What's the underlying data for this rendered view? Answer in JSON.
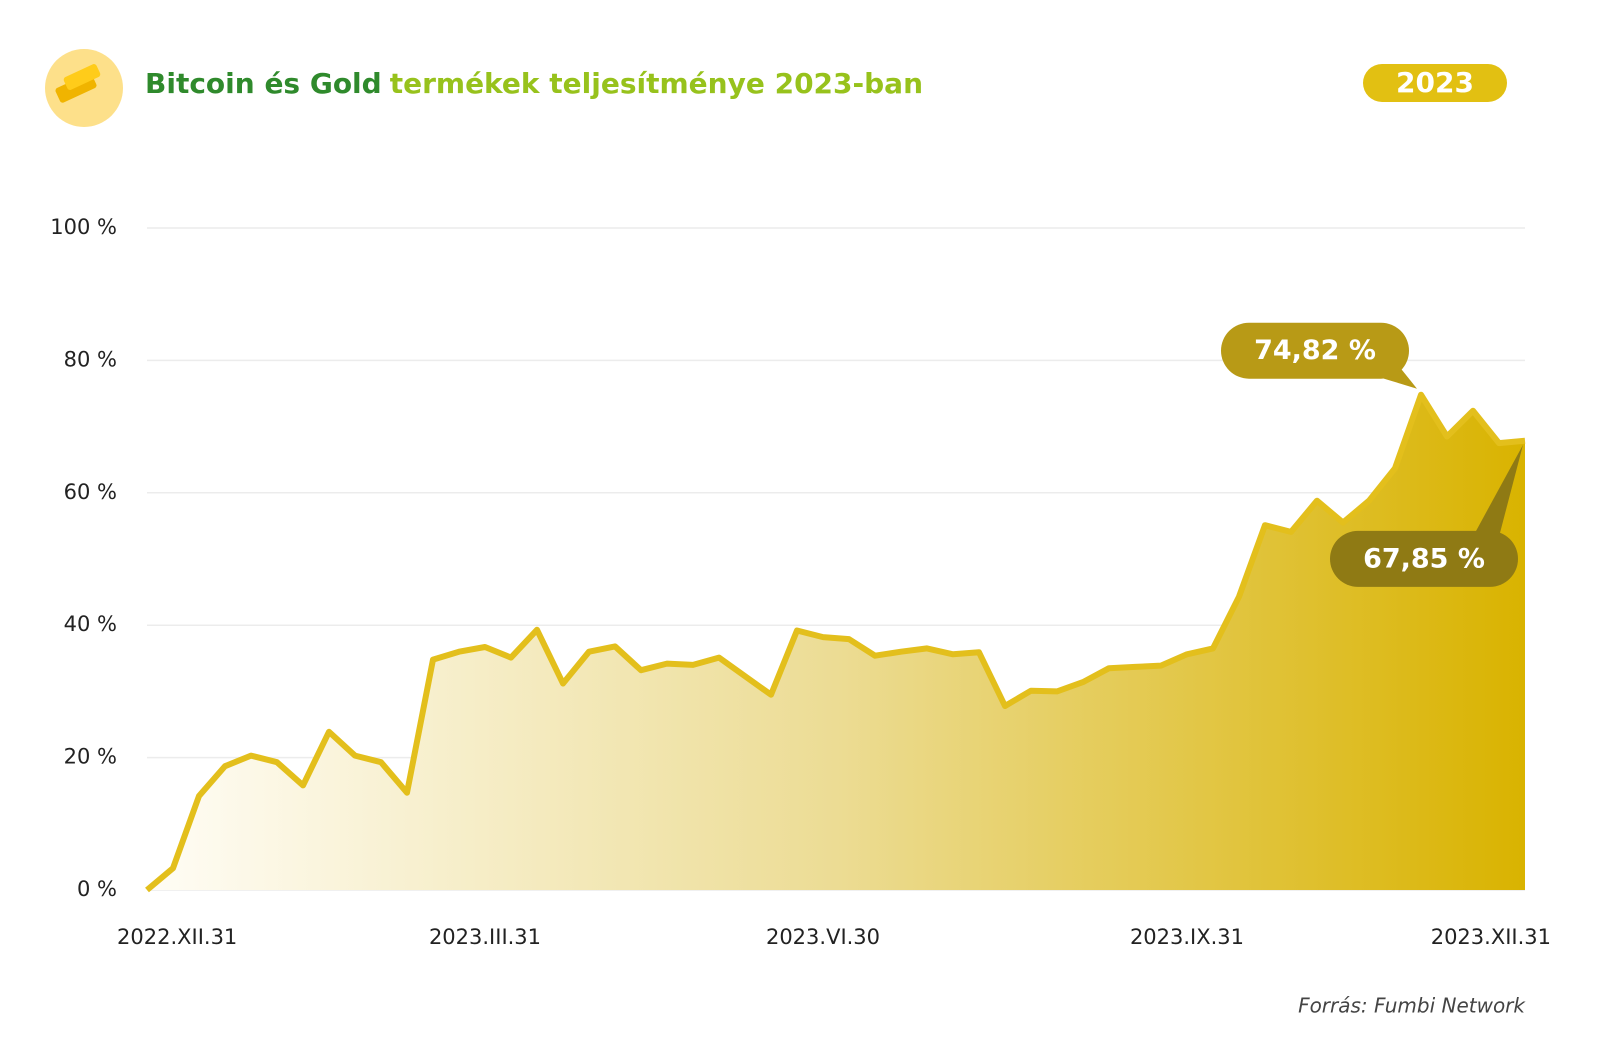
{
  "header": {
    "title_strong": "Bitcoin és Gold",
    "title": "termékek teljesítménye 2023-ban",
    "badge": "2023"
  },
  "chart_data": {
    "type": "area",
    "categories": [
      "2022.XII.31",
      null,
      null,
      null,
      null,
      null,
      null,
      null,
      null,
      null,
      null,
      null,
      null,
      "2023.III.31",
      null,
      null,
      null,
      null,
      null,
      null,
      null,
      null,
      null,
      null,
      null,
      null,
      "2023.VI.30",
      null,
      null,
      null,
      null,
      null,
      null,
      null,
      null,
      null,
      null,
      null,
      null,
      null,
      "2023.IX.31",
      null,
      null,
      null,
      null,
      null,
      null,
      null,
      null,
      null,
      null,
      null,
      null,
      "2023.XII.31"
    ],
    "series": [
      {
        "color": "#e3bf1c",
        "values": [
          0,
          3.3,
          14.2,
          18.7,
          20.3,
          19.3,
          15.8,
          23.9,
          20.3,
          19.3,
          14.7,
          34.8,
          36.0,
          36.7,
          35.1,
          39.3,
          31.2,
          36.0,
          36.8,
          33.2,
          34.2,
          34.0,
          35.1,
          32.3,
          29.5,
          39.2,
          38.2,
          37.9,
          35.4,
          36.0,
          36.5,
          35.6,
          35.9,
          27.8,
          30.1,
          30.0,
          31.4,
          33.5,
          33.7,
          33.9,
          35.6,
          36.5,
          44.3,
          55.1,
          54.1,
          58.8,
          55.5,
          58.8,
          63.7,
          74.82,
          68.5,
          72.4,
          67.5,
          67.85
        ],
        "value_labels": [
          null,
          null,
          null,
          null,
          null,
          null,
          null,
          null,
          null,
          null,
          null,
          null,
          null,
          null,
          null,
          null,
          null,
          null,
          null,
          null,
          null,
          null,
          null,
          null,
          null,
          null,
          null,
          null,
          null,
          null,
          null,
          null,
          null,
          null,
          null,
          null,
          null,
          null,
          null,
          null,
          null,
          null,
          null,
          null,
          null,
          null,
          null,
          null,
          null,
          "74,82 %",
          null,
          null,
          null,
          "67,85 %"
        ]
      }
    ],
    "ylim": [
      0,
      100
    ],
    "yticks": [
      {
        "value": 0,
        "label": "0 %"
      },
      {
        "value": 20,
        "label": "20 %"
      },
      {
        "value": 40,
        "label": "40 %"
      },
      {
        "value": 60,
        "label": "60 %"
      },
      {
        "value": 80,
        "label": "80 %"
      },
      {
        "value": 100,
        "label": "100 %"
      }
    ],
    "grid": true,
    "source": "Forrás: Fumbi Network"
  }
}
